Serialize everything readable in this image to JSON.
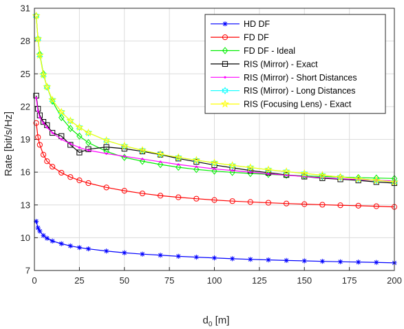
{
  "chart_data": {
    "type": "line",
    "xlabel_main": "d",
    "xlabel_sub": "0",
    "xlabel_unit": " [m]",
    "ylabel": "Rate [bit/s/Hz]",
    "xlim": [
      0,
      200
    ],
    "ylim": [
      7,
      31
    ],
    "xticks": [
      0,
      25,
      50,
      75,
      100,
      125,
      150,
      175,
      200
    ],
    "yticks": [
      7,
      10,
      13,
      16,
      19,
      22,
      25,
      28,
      31
    ],
    "grid": true,
    "legend_position": "top-right",
    "x": [
      1,
      2,
      3,
      5,
      7,
      10,
      15,
      20,
      25,
      30,
      40,
      50,
      60,
      70,
      80,
      90,
      100,
      110,
      120,
      130,
      140,
      150,
      160,
      170,
      180,
      190,
      200
    ],
    "series": [
      {
        "name": "HD DF",
        "color": "#0000ff",
        "marker": "asterisk",
        "values": [
          11.5,
          10.9,
          10.6,
          10.2,
          9.95,
          9.7,
          9.45,
          9.25,
          9.1,
          8.98,
          8.78,
          8.62,
          8.5,
          8.4,
          8.3,
          8.22,
          8.15,
          8.08,
          8.02,
          7.97,
          7.92,
          7.88,
          7.84,
          7.8,
          7.77,
          7.74,
          7.7
        ]
      },
      {
        "name": "FD DF",
        "color": "#ff0000",
        "marker": "circle",
        "values": [
          20.5,
          19.2,
          18.5,
          17.6,
          17.0,
          16.5,
          15.95,
          15.55,
          15.25,
          15.0,
          14.6,
          14.3,
          14.05,
          13.85,
          13.7,
          13.57,
          13.45,
          13.35,
          13.27,
          13.2,
          13.13,
          13.07,
          13.02,
          12.97,
          12.93,
          12.88,
          12.82
        ]
      },
      {
        "name": "FD DF - Ideal",
        "color": "#00ee00",
        "marker": "diamond",
        "values": [
          30.3,
          28.2,
          26.8,
          25.0,
          23.8,
          22.5,
          21.0,
          20.0,
          19.3,
          18.7,
          17.9,
          17.35,
          17.0,
          16.7,
          16.45,
          16.25,
          16.1,
          15.98,
          15.88,
          15.8,
          15.72,
          15.66,
          15.6,
          15.55,
          15.5,
          15.46,
          15.42
        ]
      },
      {
        "name": "RIS (Mirror) - Exact",
        "color": "#000000",
        "marker": "square",
        "values": [
          23.0,
          21.8,
          21.2,
          20.6,
          20.3,
          19.6,
          19.3,
          18.5,
          17.8,
          18.1,
          18.3,
          18.15,
          17.9,
          17.6,
          17.25,
          16.95,
          16.65,
          16.4,
          16.15,
          15.95,
          15.75,
          15.6,
          15.45,
          15.35,
          15.25,
          15.1,
          15.0
        ]
      },
      {
        "name": "RIS (Mirror) - Short Distances",
        "color": "#ff00ff",
        "marker": "dot",
        "values": [
          22.8,
          21.6,
          21.0,
          20.5,
          20.1,
          19.6,
          19.0,
          18.6,
          18.25,
          18.0,
          17.7,
          17.45,
          17.2,
          16.95,
          16.7,
          16.5,
          16.3,
          16.15,
          16.0,
          15.85,
          15.72,
          15.6,
          15.5,
          15.4,
          15.32,
          15.25,
          15.2
        ]
      },
      {
        "name": "RIS (Mirror) - Long Distances",
        "color": "#00ffff",
        "marker": "hexagram",
        "values": [
          30.3,
          28.2,
          26.7,
          24.9,
          23.8,
          22.6,
          21.5,
          20.7,
          20.1,
          19.6,
          18.9,
          18.4,
          18.0,
          17.65,
          17.35,
          17.1,
          16.85,
          16.62,
          16.42,
          16.22,
          16.05,
          15.88,
          15.72,
          15.55,
          15.4,
          15.25,
          15.1
        ]
      },
      {
        "name": "RIS (Focusing Lens) - Exact",
        "color": "#ffff00",
        "marker": "pentagram",
        "values": [
          30.3,
          28.2,
          26.7,
          24.9,
          23.8,
          22.6,
          21.5,
          20.7,
          20.1,
          19.6,
          18.9,
          18.4,
          18.0,
          17.65,
          17.35,
          17.1,
          16.85,
          16.62,
          16.42,
          16.22,
          16.05,
          15.88,
          15.72,
          15.55,
          15.4,
          15.25,
          15.1
        ]
      }
    ]
  }
}
